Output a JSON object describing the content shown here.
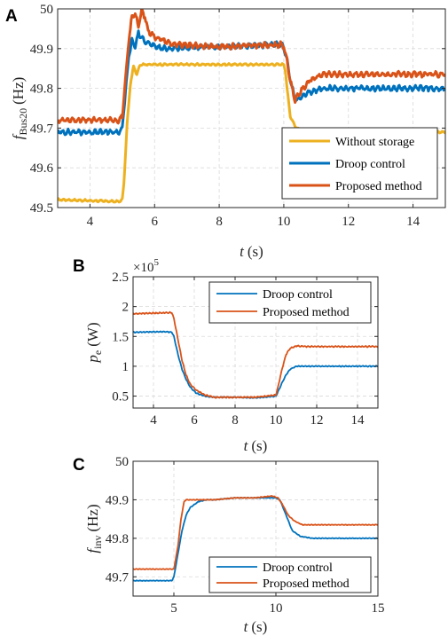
{
  "chart_data": [
    {
      "panel_label": "A",
      "type": "line",
      "xlabel": "t (s)",
      "ylabel": "f_Bus20 (Hz)",
      "ylabel_main": "f",
      "ylabel_sub": "Bus20",
      "ylabel_unit": "(Hz)",
      "xlabel_var": "t",
      "xlabel_unit": "(s)",
      "xlim": [
        3,
        15
      ],
      "ylim": [
        49.5,
        50
      ],
      "xticks": [
        4,
        6,
        8,
        10,
        12,
        14
      ],
      "yticks": [
        49.5,
        49.6,
        49.7,
        49.8,
        49.9,
        50
      ],
      "ytick_labels": [
        "49.5",
        "49.6",
        "49.7",
        "49.8",
        "49.9",
        "50"
      ],
      "grid": true,
      "legend_position": "bottom-right",
      "series": [
        {
          "name": "Without storage",
          "color": "#EDB120",
          "width": 3,
          "x": [
            3,
            4.9,
            5.0,
            5.05,
            5.15,
            5.25,
            5.35,
            5.45,
            5.55,
            6,
            8,
            10,
            10.05,
            10.1,
            10.2,
            10.35,
            10.5,
            15
          ],
          "y": [
            49.52,
            49.515,
            49.52,
            49.56,
            49.71,
            49.81,
            49.855,
            49.835,
            49.86,
            49.86,
            49.86,
            49.86,
            49.845,
            49.8,
            49.73,
            49.705,
            49.695,
            49.69
          ],
          "ripple": 0.003
        },
        {
          "name": "Droop control",
          "color": "#0072BD",
          "width": 3,
          "x": [
            3,
            4.9,
            5.0,
            5.1,
            5.2,
            5.3,
            5.4,
            5.5,
            5.6,
            5.8,
            6.0,
            6.3,
            8,
            9.9,
            10.0,
            10.1,
            10.2,
            10.35,
            10.5,
            10.8,
            11.2,
            15
          ],
          "y": [
            49.69,
            49.69,
            49.7,
            49.79,
            49.88,
            49.92,
            49.905,
            49.94,
            49.925,
            49.915,
            49.905,
            49.9,
            49.905,
            49.91,
            49.905,
            49.87,
            49.82,
            49.77,
            49.775,
            49.79,
            49.8,
            49.8
          ],
          "ripple": 0.008
        },
        {
          "name": "Proposed method",
          "color": "#D95319",
          "width": 3,
          "x": [
            3,
            4.9,
            5.0,
            5.1,
            5.2,
            5.3,
            5.4,
            5.5,
            5.6,
            5.7,
            5.8,
            6.0,
            6.3,
            6.6,
            8,
            9.9,
            10.0,
            10.1,
            10.2,
            10.35,
            10.5,
            10.8,
            11.2,
            15
          ],
          "y": [
            49.72,
            49.72,
            49.73,
            49.82,
            49.92,
            49.98,
            49.99,
            49.955,
            49.995,
            49.98,
            49.945,
            49.93,
            49.92,
            49.91,
            49.905,
            49.91,
            49.905,
            49.87,
            49.82,
            49.77,
            49.79,
            49.82,
            49.835,
            49.835
          ],
          "ripple": 0.008
        }
      ]
    },
    {
      "panel_label": "B",
      "type": "line",
      "xlabel": "t (s)",
      "ylabel": "p_e (W)",
      "ylabel_main": "p",
      "ylabel_sub": "e",
      "ylabel_unit": "(W)",
      "xlabel_var": "t",
      "xlabel_unit": "(s)",
      "multiplier_base": "×10",
      "multiplier_exp": "5",
      "xlim": [
        3,
        15
      ],
      "ylim": [
        0.3,
        2.5
      ],
      "xticks": [
        4,
        6,
        8,
        10,
        12,
        14
      ],
      "yticks": [
        0.5,
        1,
        1.5,
        2,
        2.5
      ],
      "ytick_labels": [
        "0.5",
        "1",
        "1.5",
        "2",
        "2.5"
      ],
      "grid": true,
      "legend_position": "top-right",
      "series": [
        {
          "name": "Droop control",
          "color": "#0072BD",
          "width": 1.8,
          "x": [
            3,
            4.5,
            4.9,
            5.0,
            5.2,
            5.4,
            5.6,
            5.8,
            6.1,
            6.5,
            7,
            8,
            9,
            10,
            10.1,
            10.3,
            10.5,
            10.7,
            11.0,
            11.5,
            15
          ],
          "y": [
            1.57,
            1.58,
            1.57,
            1.5,
            1.2,
            0.95,
            0.78,
            0.65,
            0.55,
            0.5,
            0.48,
            0.48,
            0.47,
            0.5,
            0.57,
            0.72,
            0.86,
            0.95,
            1.0,
            1.0,
            1.0
          ],
          "ripple": 0.01
        },
        {
          "name": "Proposed method",
          "color": "#D95319",
          "width": 1.8,
          "x": [
            3,
            4.9,
            5.0,
            5.2,
            5.4,
            5.6,
            5.8,
            6.1,
            6.5,
            7,
            8,
            9,
            10,
            10.1,
            10.3,
            10.5,
            10.7,
            11.0,
            11.5,
            15
          ],
          "y": [
            1.88,
            1.9,
            1.8,
            1.45,
            1.1,
            0.85,
            0.7,
            0.6,
            0.52,
            0.48,
            0.48,
            0.48,
            0.52,
            0.65,
            0.95,
            1.2,
            1.3,
            1.34,
            1.33,
            1.33
          ],
          "ripple": 0.012
        }
      ]
    },
    {
      "panel_label": "C",
      "type": "line",
      "xlabel": "t (s)",
      "ylabel": "f_inv (Hz)",
      "ylabel_main": "f",
      "ylabel_sub": "inv",
      "ylabel_unit": "(Hz)",
      "xlabel_var": "t",
      "xlabel_unit": "(s)",
      "xlim": [
        3,
        15
      ],
      "ylim": [
        49.65,
        50
      ],
      "xticks": [
        5,
        10,
        15
      ],
      "yticks": [
        49.7,
        49.8,
        49.9,
        50
      ],
      "ytick_labels": [
        "49.7",
        "49.8",
        "49.9",
        "50"
      ],
      "grid": true,
      "legend_position": "bottom-right",
      "series": [
        {
          "name": "Droop control",
          "color": "#0072BD",
          "width": 1.8,
          "x": [
            3,
            4.9,
            5.0,
            5.2,
            5.4,
            5.6,
            5.8,
            6.2,
            6.6,
            7,
            8,
            9,
            10,
            10.2,
            10.5,
            10.8,
            11.2,
            11.8,
            12.5,
            15
          ],
          "y": [
            49.69,
            49.69,
            49.7,
            49.76,
            49.82,
            49.86,
            49.88,
            49.895,
            49.9,
            49.9,
            49.905,
            49.905,
            49.905,
            49.9,
            49.86,
            49.82,
            49.805,
            49.8,
            49.8,
            49.8
          ],
          "ripple": 0.001
        },
        {
          "name": "Proposed method",
          "color": "#D95319",
          "width": 1.8,
          "x": [
            3,
            5.0,
            5.2,
            5.35,
            5.5,
            5.6,
            6.0,
            7,
            8,
            9,
            9.8,
            10.1,
            10.3,
            10.6,
            10.9,
            11.3,
            11.8,
            12.5,
            15
          ],
          "y": [
            49.72,
            49.72,
            49.78,
            49.85,
            49.895,
            49.9,
            49.9,
            49.9,
            49.905,
            49.905,
            49.91,
            49.905,
            49.89,
            49.86,
            49.845,
            49.835,
            49.835,
            49.835,
            49.835
          ],
          "ripple": 0.001
        }
      ]
    }
  ]
}
